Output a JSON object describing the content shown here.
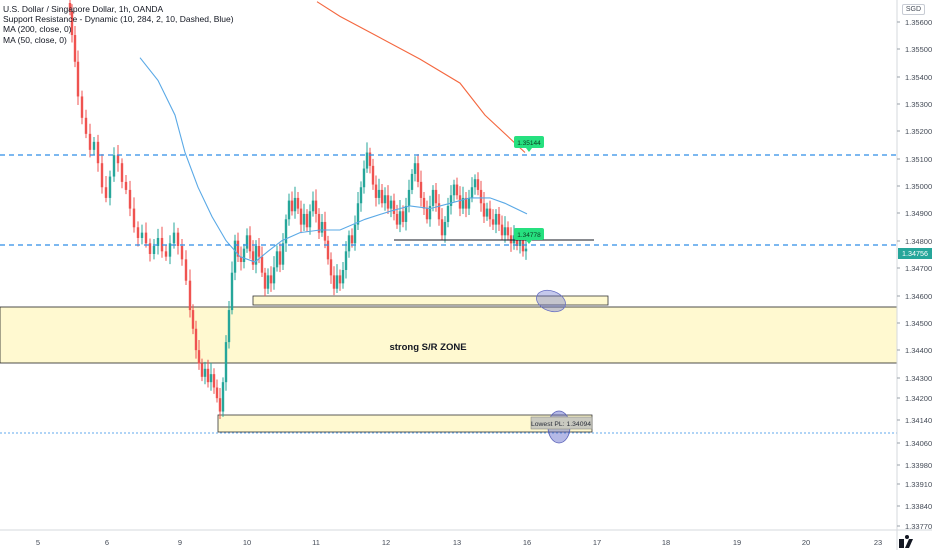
{
  "legend": {
    "symbol": "U.S. Dollar / Singapore Dollar, 1h, OANDA",
    "indicators": [
      "Support Resistance - Dynamic (10, 284, 2, 10, Dashed, Blue)",
      "MA (200, close, 0)",
      "MA (50, close, 0)"
    ]
  },
  "currency_label": "SGD",
  "colors": {
    "up_candle": "#26a69a",
    "down_candle": "#ef5350",
    "ma200": "#f4673f",
    "ma50": "#5aa9e6",
    "sr_line": "#2f8ee6",
    "zone_fill": "#fff9d0",
    "price_badge": "#26e07f"
  },
  "chart_data": {
    "type": "candlestick",
    "y_axis": {
      "range": [
        1.3373,
        1.35675
      ],
      "ticks": [
        "1.35600",
        "1.35500",
        "1.35400",
        "1.35300",
        "1.35200",
        "1.35100",
        "1.35000",
        "1.34900",
        "1.34800",
        "1.34700",
        "1.34600",
        "1.34500",
        "1.34400",
        "1.34300",
        "1.34200",
        "1.34140",
        "1.34060",
        "1.33980",
        "1.33910",
        "1.33840",
        "1.33770"
      ]
    },
    "x_axis": {
      "labels": [
        "5",
        "6",
        "8",
        "9",
        "10",
        "11",
        "12",
        "13",
        "16",
        "17",
        "18",
        "19",
        "20",
        "23"
      ]
    },
    "current_price": "1.34756",
    "support_resistance_levels": [
      1.3512,
      1.34775,
      1.34094
    ],
    "zone": {
      "label": "strong S/R ZONE",
      "top": 1.34555,
      "bottom": 1.3437
    },
    "boxes": [
      {
        "top": 1.346,
        "bottom": 1.34575
      },
      {
        "top": 1.3414,
        "bottom": 1.3409
      }
    ],
    "annotations": [
      {
        "text": "1.35144",
        "type": "badge"
      },
      {
        "text": "1.34778",
        "type": "badge"
      },
      {
        "text": "Lowest PL: 1.34094",
        "type": "label"
      }
    ],
    "ma200": [
      [
        1.35675,
        317
      ],
      [
        1.3562,
        340
      ],
      [
        1.3555,
        375
      ],
      [
        1.3546,
        420
      ],
      [
        1.3537,
        460
      ],
      [
        1.3525,
        485
      ],
      [
        1.3511,
        525
      ]
    ],
    "ma50": [
      [
        1.35465,
        140
      ],
      [
        1.3538,
        158
      ],
      [
        1.3525,
        175
      ],
      [
        1.3511,
        185
      ],
      [
        1.3498,
        198
      ],
      [
        1.3487,
        212
      ],
      [
        1.3478,
        226
      ],
      [
        1.3472,
        240
      ],
      [
        1.347,
        255
      ],
      [
        1.3474,
        268
      ],
      [
        1.3478,
        282
      ],
      [
        1.3481,
        300
      ],
      [
        1.3482,
        320
      ],
      [
        1.3482,
        340
      ],
      [
        1.3486,
        365
      ],
      [
        1.3489,
        390
      ],
      [
        1.3491,
        410
      ],
      [
        1.349,
        430
      ],
      [
        1.3492,
        450
      ],
      [
        1.3494,
        470
      ],
      [
        1.3494,
        490
      ],
      [
        1.3492,
        505
      ],
      [
        1.3488,
        527
      ]
    ]
  }
}
